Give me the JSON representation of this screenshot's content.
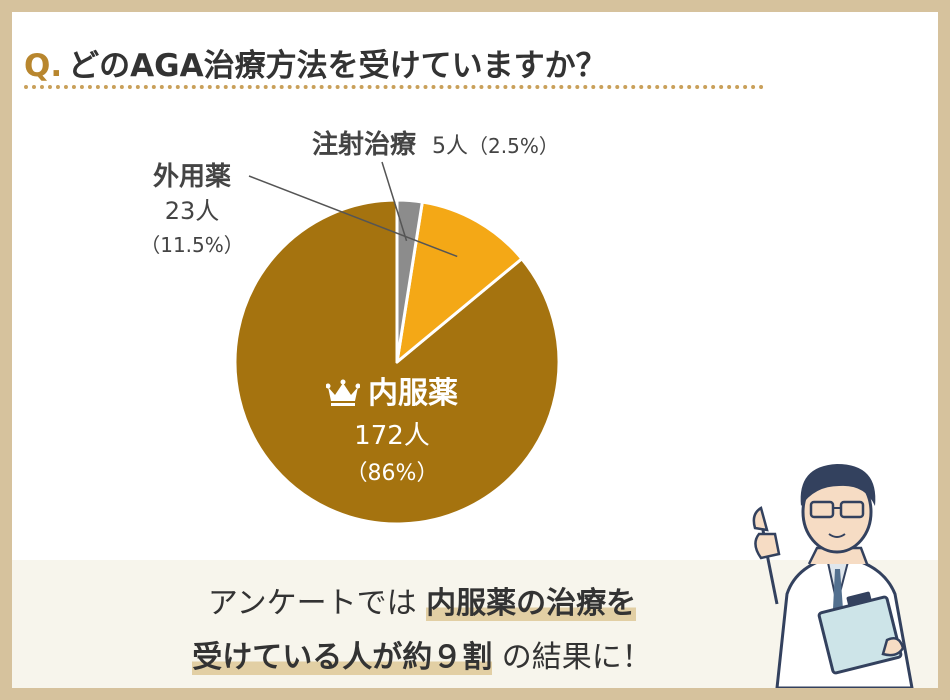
{
  "title": {
    "q": "Q.",
    "text": "どのAGA治療方法を受けていますか？"
  },
  "chart_data": {
    "type": "pie",
    "title": "どのAGA治療方法を受けていますか？",
    "slices": [
      {
        "name": "内服薬",
        "count": "172人",
        "percent": "（86%）",
        "value": 86,
        "color": "#a5730f"
      },
      {
        "name": "外用薬",
        "count": "23人",
        "percent": "（11.5%）",
        "value": 11.5,
        "color": "#f4a816"
      },
      {
        "name": "注射治療",
        "count": "5人",
        "percent": "（2.5%）",
        "value": 2.5,
        "color": "#8c8c8c"
      }
    ]
  },
  "conclusion": {
    "pre": "アンケートでは",
    "highlight1": "内服薬の治療を",
    "highlight2": "受けている人が約９割",
    "post": "の結果に！"
  },
  "colors": {
    "border": "#d6c29d",
    "accent": "#b8862e",
    "band": "#f7f5ec"
  },
  "icons": [
    "crown-icon",
    "doctor-illustration"
  ]
}
